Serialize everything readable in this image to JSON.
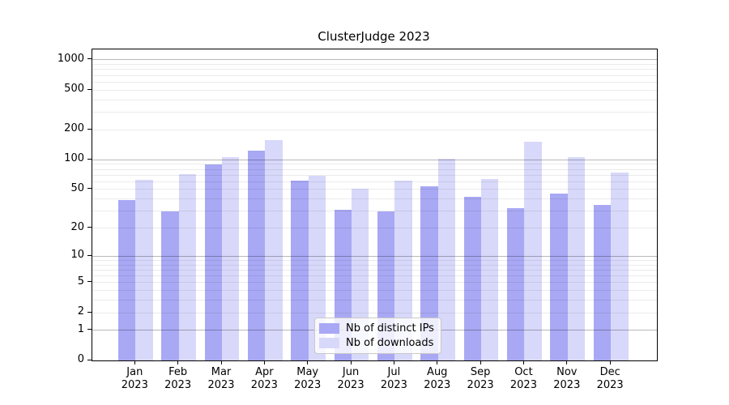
{
  "title": "ClusterJudge 2023",
  "colors": {
    "bar_distinct_ips": "#a8a8f4",
    "bar_downloads": "#d8d8fa",
    "grid_major": "#b6b6b6",
    "grid_minor": "#ebebeb",
    "axis": "#000000",
    "background": "#ffffff"
  },
  "legend": {
    "entries": [
      "Nb of distinct IPs",
      "Nb of downloads"
    ],
    "position": "lower center"
  },
  "chart_data": {
    "type": "bar",
    "title": "ClusterJudge 2023",
    "categories": [
      "Jan 2023",
      "Feb 2023",
      "Mar 2023",
      "Apr 2023",
      "May 2023",
      "Jun 2023",
      "Jul 2023",
      "Aug 2023",
      "Sep 2023",
      "Oct 2023",
      "Nov 2023",
      "Dec 2023"
    ],
    "series": [
      {
        "name": "Nb of distinct IPs",
        "color": "#a8a8f4",
        "values": [
          39,
          30,
          89,
          123,
          61,
          31,
          30,
          54,
          42,
          32,
          45,
          35
        ]
      },
      {
        "name": "Nb of downloads",
        "color": "#d8d8fa",
        "values": [
          63,
          72,
          107,
          158,
          69,
          51,
          61,
          102,
          64,
          152,
          107,
          74
        ]
      }
    ],
    "xlabel": "",
    "ylabel": "",
    "yscale": "symlog (position = k * ln(1+value))",
    "yticks": [
      0,
      1,
      2,
      5,
      10,
      20,
      50,
      100,
      200,
      500,
      1000
    ],
    "ytick_majors": [
      1,
      10,
      100,
      1000
    ],
    "ylim": [
      0,
      1275
    ],
    "grid": true,
    "legend_position": "lower center"
  }
}
